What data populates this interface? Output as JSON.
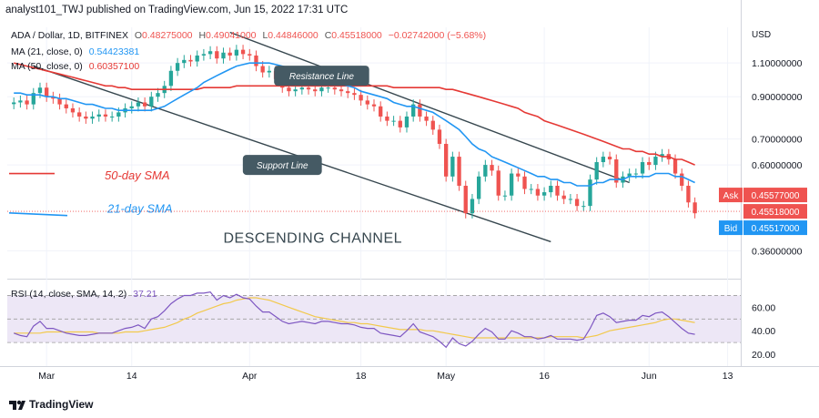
{
  "header": {
    "published": "analyst101_TWJ published on TradingView.com, Jun 15, 2022 17:31 UTC"
  },
  "legend": {
    "symbol": "ADA / Dollar, 1D, BITFINEX",
    "o_label": "O",
    "o": "0.48275000",
    "h_label": "H",
    "h": "0.49041000",
    "l_label": "L",
    "l": "0.44846000",
    "c_label": "C",
    "c": "0.45518000",
    "change": "−0.02742000 (−5.68%)",
    "ma21_label": "MA (21, close, 0)",
    "ma21_value": "0.54423381",
    "ma50_label": "MA (50, close, 0)",
    "ma50_value": "0.60357100",
    "rsi_label": "RSI (14, close, SMA, 14, 2)",
    "rsi_value": "37.21"
  },
  "annotations": {
    "resistance": "Resistance Line",
    "support": "Support Line",
    "sma50": "50-day SMA",
    "sma21": "21-day SMA",
    "channel": "DESCENDING CHANNEL"
  },
  "price_tags": {
    "ask_label": "Ask",
    "ask": "0.45577000",
    "last": "0.45518000",
    "bid_label": "Bid",
    "bid": "0.45517000"
  },
  "footer": {
    "brand": "TradingView"
  },
  "colors": {
    "up": "#26a69a",
    "down": "#ef5350",
    "ma21": "#2196f3",
    "ma50": "#e53935",
    "rsi": "#7e57c2",
    "rsi_ma": "#f2c94c",
    "channel": "#37474f",
    "rsi_band": "#ede7f6"
  },
  "chart_data": [
    {
      "type": "candlestick",
      "title": "ADA / Dollar, 1D, BITFINEX",
      "y_unit": "USD",
      "y_scale": "log",
      "y_ticks": [
        1.1,
        0.9,
        0.7,
        0.6,
        0.36
      ],
      "y_tick_labels": [
        "1.10000000",
        "0.90000000",
        "0.70000000",
        "0.60000000",
        "0.36000000"
      ],
      "x_ticks": [
        "Mar",
        "14",
        "Apr",
        "18",
        "May",
        "16",
        "Jun",
        "13"
      ],
      "x_tick_dates": [
        "2022-03-01",
        "2022-03-14",
        "2022-04-01",
        "2022-04-18",
        "2022-05-01",
        "2022-05-16",
        "2022-06-01",
        "2022-06-13"
      ],
      "x_range": [
        "2022-02-23",
        "2022-06-15"
      ],
      "grid": true,
      "closes": [
        0.87,
        0.88,
        0.86,
        0.92,
        0.95,
        0.9,
        0.89,
        0.86,
        0.84,
        0.82,
        0.8,
        0.79,
        0.8,
        0.81,
        0.8,
        0.8,
        0.82,
        0.84,
        0.85,
        0.87,
        0.85,
        0.9,
        0.92,
        0.96,
        1.05,
        1.1,
        1.12,
        1.11,
        1.15,
        1.16,
        1.18,
        1.13,
        1.17,
        1.15,
        1.19,
        1.16,
        1.15,
        1.08,
        1.04,
        1.05,
        1.0,
        0.95,
        0.93,
        0.94,
        0.95,
        0.94,
        0.93,
        0.95,
        0.95,
        0.94,
        0.93,
        0.92,
        0.91,
        0.88,
        0.86,
        0.85,
        0.8,
        0.78,
        0.78,
        0.75,
        0.8,
        0.86,
        0.8,
        0.78,
        0.74,
        0.68,
        0.56,
        0.63,
        0.53,
        0.45,
        0.49,
        0.56,
        0.6,
        0.58,
        0.5,
        0.5,
        0.57,
        0.56,
        0.52,
        0.52,
        0.5,
        0.51,
        0.53,
        0.5,
        0.49,
        0.49,
        0.47,
        0.47,
        0.55,
        0.61,
        0.63,
        0.62,
        0.54,
        0.56,
        0.57,
        0.57,
        0.61,
        0.6,
        0.63,
        0.64,
        0.62,
        0.57,
        0.53,
        0.48,
        0.45
      ],
      "series": [
        {
          "name": "MA (21, close, 0)",
          "values": [
            0.92,
            0.92,
            0.91,
            0.91,
            0.91,
            0.9,
            0.9,
            0.89,
            0.89,
            0.88,
            0.87,
            0.86,
            0.86,
            0.85,
            0.84,
            0.84,
            0.83,
            0.83,
            0.83,
            0.83,
            0.83,
            0.83,
            0.84,
            0.85,
            0.87,
            0.89,
            0.91,
            0.93,
            0.95,
            0.98,
            1.0,
            1.02,
            1.04,
            1.06,
            1.08,
            1.09,
            1.1,
            1.1,
            1.1,
            1.1,
            1.09,
            1.08,
            1.07,
            1.06,
            1.05,
            1.03,
            1.02,
            1.01,
            1.0,
            0.99,
            0.97,
            0.96,
            0.95,
            0.93,
            0.92,
            0.91,
            0.9,
            0.89,
            0.87,
            0.86,
            0.85,
            0.85,
            0.84,
            0.83,
            0.82,
            0.8,
            0.78,
            0.76,
            0.74,
            0.71,
            0.68,
            0.66,
            0.65,
            0.63,
            0.62,
            0.61,
            0.6,
            0.59,
            0.58,
            0.57,
            0.56,
            0.56,
            0.55,
            0.55,
            0.54,
            0.54,
            0.53,
            0.53,
            0.53,
            0.54,
            0.54,
            0.55,
            0.55,
            0.55,
            0.56,
            0.56,
            0.56,
            0.56,
            0.57,
            0.57,
            0.57,
            0.56,
            0.56,
            0.55,
            0.54
          ]
        },
        {
          "name": "MA (50, close, 0)",
          "values": [
            1.1,
            1.09,
            1.08,
            1.07,
            1.06,
            1.05,
            1.04,
            1.03,
            1.02,
            1.01,
            1.0,
            0.99,
            0.98,
            0.97,
            0.96,
            0.96,
            0.95,
            0.95,
            0.94,
            0.94,
            0.94,
            0.94,
            0.94,
            0.94,
            0.94,
            0.94,
            0.94,
            0.94,
            0.94,
            0.95,
            0.95,
            0.95,
            0.95,
            0.95,
            0.96,
            0.96,
            0.96,
            0.96,
            0.96,
            0.96,
            0.96,
            0.96,
            0.96,
            0.96,
            0.96,
            0.96,
            0.96,
            0.96,
            0.96,
            0.96,
            0.96,
            0.96,
            0.96,
            0.96,
            0.96,
            0.96,
            0.96,
            0.96,
            0.95,
            0.95,
            0.95,
            0.95,
            0.95,
            0.95,
            0.95,
            0.95,
            0.94,
            0.94,
            0.93,
            0.92,
            0.91,
            0.9,
            0.89,
            0.88,
            0.87,
            0.86,
            0.85,
            0.84,
            0.82,
            0.81,
            0.8,
            0.78,
            0.77,
            0.76,
            0.75,
            0.74,
            0.73,
            0.72,
            0.71,
            0.7,
            0.69,
            0.68,
            0.67,
            0.66,
            0.66,
            0.65,
            0.65,
            0.64,
            0.64,
            0.63,
            0.63,
            0.62,
            0.62,
            0.61,
            0.6
          ]
        }
      ],
      "annotations": [
        "Resistance Line",
        "Support Line",
        "50-day SMA",
        "21-day SMA",
        "DESCENDING CHANNEL"
      ]
    },
    {
      "type": "line",
      "title": "RSI (14, close, SMA, 14, 2)",
      "y_ticks": [
        20,
        40,
        60
      ],
      "y_tick_labels": [
        "20.00",
        "40.00",
        "60.00"
      ],
      "bands": [
        30,
        70
      ],
      "series": [
        {
          "name": "RSI",
          "values": [
            38,
            36,
            35,
            44,
            48,
            42,
            42,
            40,
            38,
            37,
            36,
            36,
            37,
            38,
            38,
            38,
            40,
            42,
            43,
            45,
            42,
            50,
            52,
            57,
            63,
            67,
            70,
            70,
            72,
            72,
            73,
            66,
            70,
            68,
            71,
            68,
            67,
            61,
            56,
            56,
            52,
            48,
            46,
            47,
            48,
            47,
            46,
            48,
            48,
            47,
            46,
            46,
            45,
            43,
            42,
            42,
            38,
            37,
            36,
            35,
            40,
            46,
            39,
            37,
            35,
            31,
            26,
            34,
            29,
            27,
            31,
            37,
            42,
            39,
            33,
            33,
            40,
            38,
            35,
            35,
            33,
            34,
            36,
            33,
            33,
            33,
            32,
            33,
            42,
            53,
            55,
            52,
            47,
            48,
            49,
            49,
            53,
            52,
            55,
            56,
            52,
            47,
            42,
            38,
            37
          ]
        },
        {
          "name": "RSI MA",
          "values": [
            38,
            38,
            38,
            38,
            38,
            39,
            39,
            39,
            39,
            39,
            39,
            39,
            39,
            38,
            38,
            38,
            38,
            39,
            39,
            39,
            40,
            41,
            42,
            43,
            45,
            47,
            50,
            52,
            55,
            57,
            59,
            61,
            63,
            64,
            66,
            67,
            68,
            68,
            67,
            66,
            64,
            62,
            60,
            58,
            56,
            54,
            52,
            51,
            50,
            49,
            48,
            47,
            47,
            46,
            46,
            45,
            44,
            43,
            42,
            41,
            41,
            41,
            41,
            40,
            40,
            39,
            38,
            37,
            36,
            35,
            34,
            34,
            34,
            34,
            34,
            34,
            34,
            34,
            34,
            34,
            34,
            34,
            35,
            35,
            35,
            35,
            35,
            34,
            35,
            36,
            38,
            40,
            41,
            42,
            43,
            44,
            45,
            46,
            47,
            49,
            50,
            50,
            49,
            48,
            47
          ]
        }
      ]
    }
  ]
}
